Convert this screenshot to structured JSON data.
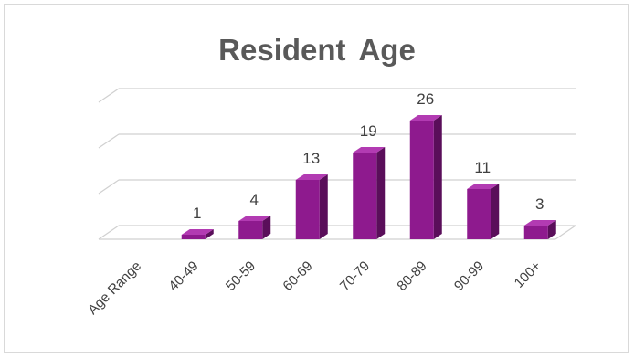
{
  "chart_data": {
    "type": "bar",
    "title": "Resident  Age",
    "categories": [
      "Age Range",
      "40-49",
      "50-59",
      "60-69",
      "70-79",
      "80-89",
      "90-99",
      "100+"
    ],
    "values": [
      null,
      1,
      4,
      13,
      19,
      26,
      11,
      3
    ],
    "ylim": [
      0,
      30
    ],
    "grid": true,
    "legend": "none",
    "style": "3d-column",
    "bar_color": "#8e1a8e",
    "bar_top_color": "#b23bb2",
    "bar_side_color": "#5a0e5a"
  }
}
